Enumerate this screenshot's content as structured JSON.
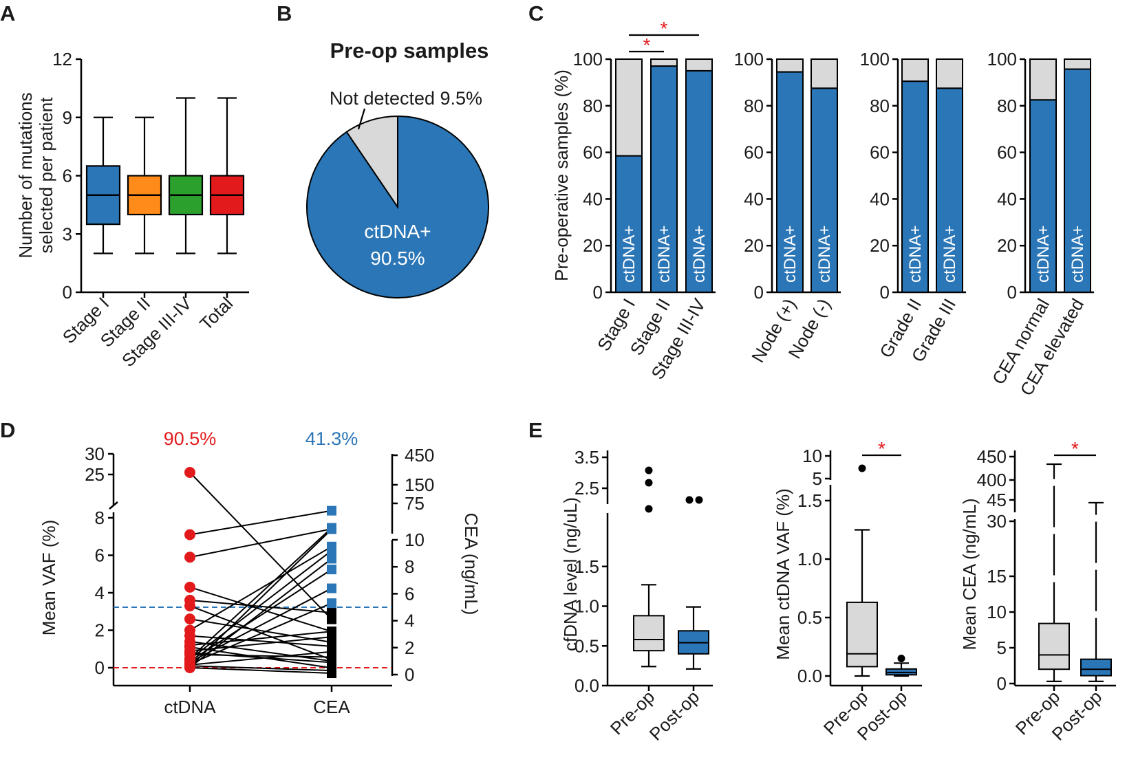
{
  "colors": {
    "blue": "#2b76b6",
    "orange": "#ff8c1a",
    "green": "#2ca02c",
    "red": "#e31a1c",
    "grey": "#d9d9d9",
    "sig_red": "#e31a1c"
  },
  "chart_data": [
    {
      "panel": "A",
      "type": "box",
      "ylabel_line1": "Number of mutations",
      "ylabel_line2": "selected per patient",
      "ylim": [
        0,
        12
      ],
      "yticks": [
        "0",
        "3",
        "6",
        "9",
        "12"
      ],
      "categories": [
        "Stage I",
        "Stage II",
        "Stage III-IV",
        "Total"
      ],
      "boxes": [
        {
          "min": 2,
          "q1": 3.5,
          "median": 5,
          "q3": 6.5,
          "max": 9,
          "color": "#2b76b6"
        },
        {
          "min": 2,
          "q1": 4,
          "median": 5,
          "q3": 6,
          "max": 9,
          "color": "#ff8c1a"
        },
        {
          "min": 2,
          "q1": 4,
          "median": 5,
          "q3": 6,
          "max": 10,
          "color": "#2ca02c"
        },
        {
          "min": 2,
          "q1": 4,
          "median": 5,
          "q3": 6,
          "max": 10,
          "color": "#e31a1c"
        }
      ]
    },
    {
      "panel": "B",
      "type": "pie",
      "title": "Pre-op samples",
      "slices": [
        {
          "label": "ctDNA+",
          "value": 90.5,
          "value_text": "90.5%",
          "color": "#2b76b6"
        },
        {
          "label": "Not detected 9.5%",
          "value": 9.5,
          "color": "#d9d9d9"
        }
      ]
    },
    {
      "panel": "C",
      "type": "stacked_bar",
      "ylabel": "Pre-operative samples (%)",
      "ylim": [
        0,
        100
      ],
      "yticks": [
        "0",
        "20",
        "40",
        "60",
        "80",
        "100"
      ],
      "bar_label": "ctDNA+",
      "groups": [
        {
          "categories": [
            "Stage I",
            "Stage II",
            "Stage III-IV"
          ],
          "positive": [
            58.5,
            97,
            95
          ]
        },
        {
          "categories": [
            "Node (+)",
            "Node (-)"
          ],
          "positive": [
            94.5,
            87.5
          ]
        },
        {
          "categories": [
            "Grade II",
            "Grade III"
          ],
          "positive": [
            90.5,
            87.5
          ]
        },
        {
          "categories": [
            "CEA normal",
            "CEA elevated"
          ],
          "positive": [
            82.5,
            95.7
          ]
        }
      ],
      "significance": [
        {
          "between": [
            "Stage I",
            "Stage II"
          ],
          "mark": "*"
        },
        {
          "between": [
            "Stage I",
            "Stage III-IV"
          ],
          "mark": "*"
        }
      ]
    },
    {
      "panel": "D",
      "type": "paired_dot",
      "categories": [
        "ctDNA",
        "CEA"
      ],
      "left_ylabel": "Mean VAF (%)",
      "right_ylabel": "CEA (ng/mL)",
      "left_ticks_low": [
        "0",
        "2",
        "4",
        "6",
        "8"
      ],
      "left_ticks_high": [
        "25",
        "30"
      ],
      "right_ticks_low": [
        "0",
        "2",
        "4",
        "6",
        "8",
        "10"
      ],
      "right_ticks_high": [
        "75",
        "150",
        "450"
      ],
      "ctDNA_detected": "90.5%",
      "CEA_elevated": "41.3%",
      "ctDNA_threshold_vaf": 0,
      "CEA_threshold_ng_ml": 5,
      "pairs": [
        {
          "vaf": 25.5,
          "cea": 4.1
        },
        {
          "vaf": 7.1,
          "cea": 110
        },
        {
          "vaf": 5.9,
          "cea": 14
        },
        {
          "vaf": 4.3,
          "cea": 3.2
        },
        {
          "vaf": 3.6,
          "cea": 4.6
        },
        {
          "vaf": 3.3,
          "cea": 1.1
        },
        {
          "vaf": 2.6,
          "cea": 2.4
        },
        {
          "vaf": 2.0,
          "cea": 9.5
        },
        {
          "vaf": 1.7,
          "cea": 2.1
        },
        {
          "vaf": 1.4,
          "cea": 1.0
        },
        {
          "vaf": 1.2,
          "cea": 3.2
        },
        {
          "vaf": 1.1,
          "cea": 0.5
        },
        {
          "vaf": 0.9,
          "cea": 2.8
        },
        {
          "vaf": 0.8,
          "cea": 0.9
        },
        {
          "vaf": 0.7,
          "cea": 1.3
        },
        {
          "vaf": 0.5,
          "cea": 22
        },
        {
          "vaf": 0.45,
          "cea": 9.2
        },
        {
          "vaf": 0.35,
          "cea": 7.8
        },
        {
          "vaf": 0.3,
          "cea": 6.4
        },
        {
          "vaf": 0.2,
          "cea": 5.3
        },
        {
          "vaf": 0.15,
          "cea": 1.7
        },
        {
          "vaf": 0.1,
          "cea": 0.3
        },
        {
          "vaf": 0.05,
          "cea": 12
        },
        {
          "vaf": 0.02,
          "cea": 8.6
        },
        {
          "vaf": 0.0,
          "cea": 0.1
        }
      ]
    },
    {
      "panel": "E",
      "type": "box",
      "subplots": [
        {
          "ylabel": "cfDNA level (ng/uL)",
          "categories": [
            "Pre-op",
            "Post-op"
          ],
          "ticks_low": [
            "0.0",
            "0.5",
            "1.0",
            "1.5"
          ],
          "ticks_high": [
            "2.5",
            "3.5"
          ],
          "boxes": [
            {
              "min": 0.24,
              "q1": 0.44,
              "median": 0.58,
              "q3": 0.88,
              "max": 1.27,
              "outliers": [
                1.85,
                2.55,
                3.0
              ],
              "color": "#d9d9d9"
            },
            {
              "min": 0.21,
              "q1": 0.4,
              "median": 0.54,
              "q3": 0.69,
              "max": 0.99,
              "outliers": [
                2.1,
                2.1
              ],
              "color": "#2b76b6"
            }
          ]
        },
        {
          "ylabel": "Mean ctDNA VAF (%)",
          "categories": [
            "Pre-op",
            "Post-op"
          ],
          "ticks_low": [
            "0.0",
            "0.5",
            "1.0",
            "1.5"
          ],
          "ticks_high": [
            "5",
            "10"
          ],
          "significance": "*",
          "boxes": [
            {
              "min": 0.0,
              "q1": 0.08,
              "median": 0.19,
              "q3": 0.63,
              "max": 1.25,
              "outliers": [
                7.5
              ],
              "color": "#d9d9d9"
            },
            {
              "min": 0.0,
              "q1": 0.01,
              "median": 0.03,
              "q3": 0.06,
              "max": 0.11,
              "outliers": [
                0.15
              ],
              "color": "#2b76b6"
            }
          ]
        },
        {
          "ylabel": "Mean CEA (ng/mL)",
          "categories": [
            "Pre-op",
            "Post-op"
          ],
          "ticks_low": [
            "0",
            "5",
            "10",
            "15"
          ],
          "ticks_mid": [
            "30",
            "45"
          ],
          "ticks_high": [
            "400",
            "450"
          ],
          "significance": "*",
          "boxes": [
            {
              "min": 0.3,
              "q1": 2.0,
              "median": 4.0,
              "q3": 8.4,
              "max": 420,
              "color": "#d9d9d9"
            },
            {
              "min": 0.3,
              "q1": 1.1,
              "median": 2.0,
              "q3": 3.4,
              "max": 42,
              "color": "#2b76b6"
            }
          ]
        }
      ]
    }
  ],
  "panels": {
    "a": "A",
    "b": "B",
    "c": "C",
    "d": "D",
    "e": "E"
  }
}
